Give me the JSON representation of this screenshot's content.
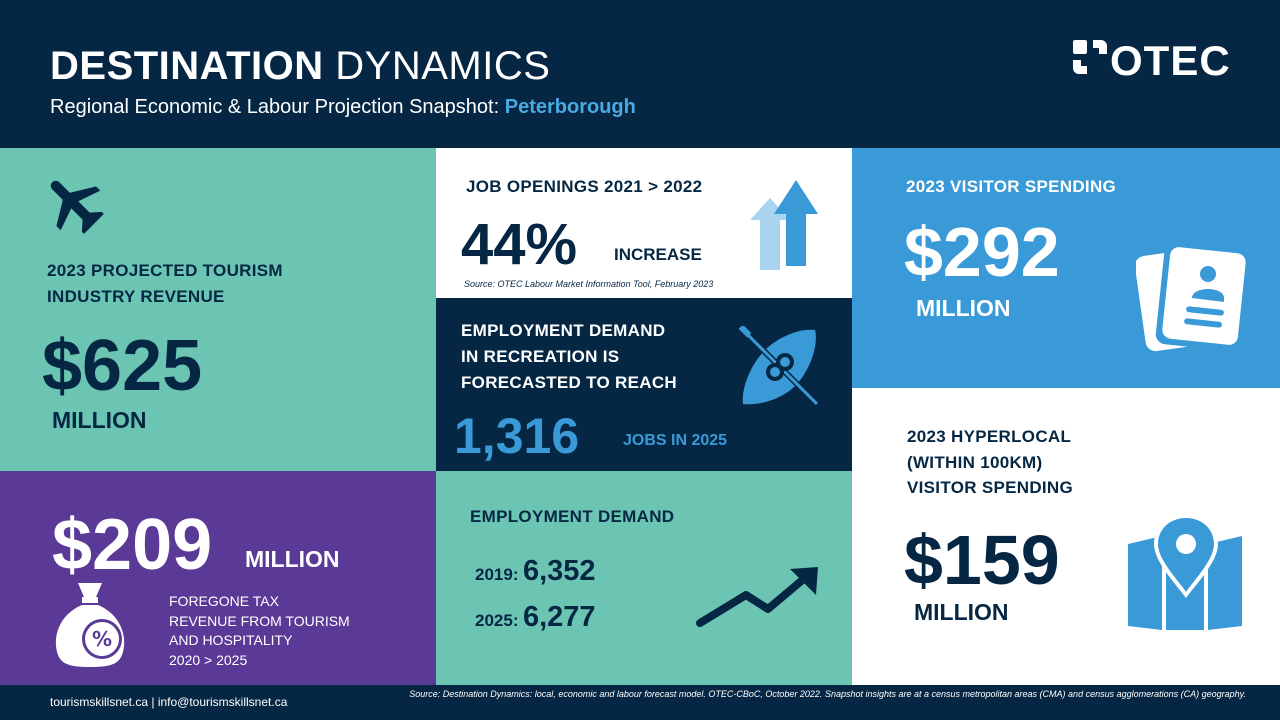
{
  "header": {
    "title_bold": "DESTINATION",
    "title_light": "DYNAMICS",
    "subtitle_prefix": "Regional Economic & Labour Projection Snapshot:",
    "subtitle_city": "Peterborough",
    "logo_text": "OTEC"
  },
  "revenue": {
    "label_line1": "2023 PROJECTED TOURISM",
    "label_line2": "INDUSTRY REVENUE",
    "value": "$625",
    "unit": "MILLION",
    "icon": "airplane-icon"
  },
  "tax": {
    "value": "$209",
    "unit": "MILLION",
    "desc_line1": "FOREGONE TAX",
    "desc_line2": "REVENUE FROM TOURISM",
    "desc_line3": "AND HOSPITALITY",
    "desc_line4": "2020 > 2025",
    "icon": "money-bag-percent-icon"
  },
  "jobs": {
    "label": "JOB OPENINGS  2021 > 2022",
    "value": "44%",
    "unit": "INCREASE",
    "source": "Source: OTEC Labour Market Information Tool, February 2023",
    "icon": "arrow-up-icon"
  },
  "recreation": {
    "label_line1": "EMPLOYMENT  DEMAND",
    "label_line2": "IN RECREATION  IS",
    "label_line3": "FORECASTED TO REACH",
    "value": "1,316",
    "unit": "JOBS IN 2025",
    "icon": "kayak-icon"
  },
  "employment": {
    "label": "EMPLOYMENT  DEMAND",
    "row1_year": "2019:",
    "row1_value": "6,352",
    "row2_year": "2025:",
    "row2_value": "6,277",
    "icon": "trend-up-icon"
  },
  "visitor": {
    "label": "2023 VISITOR  SPENDING",
    "value": "$292",
    "unit": "MILLION",
    "icon": "passport-icon"
  },
  "hyperlocal": {
    "label_line1": "2023 HYPERLOCAL",
    "label_line2": "(WITHIN 100KM)",
    "label_line3": "VISITOR SPENDING",
    "value": "$159",
    "unit": "MILLION",
    "icon": "map-pin-icon"
  },
  "footer": {
    "contact": "tourismskillsnet.ca  |  info@tourismskillsnet.ca",
    "source": "Source: Destination Dynamics: local, economic and labour forecast model. OTEC-CBoC, October 2022. Snapshot insights are at a census metropolitan areas (CMA) and census agglomerations (CA) geography."
  },
  "colors": {
    "navy": "#062743",
    "teal": "#6cc5b3",
    "purple": "#5a3a96",
    "blue": "#3a9ad8",
    "light_blue": "#4aa8e3"
  }
}
